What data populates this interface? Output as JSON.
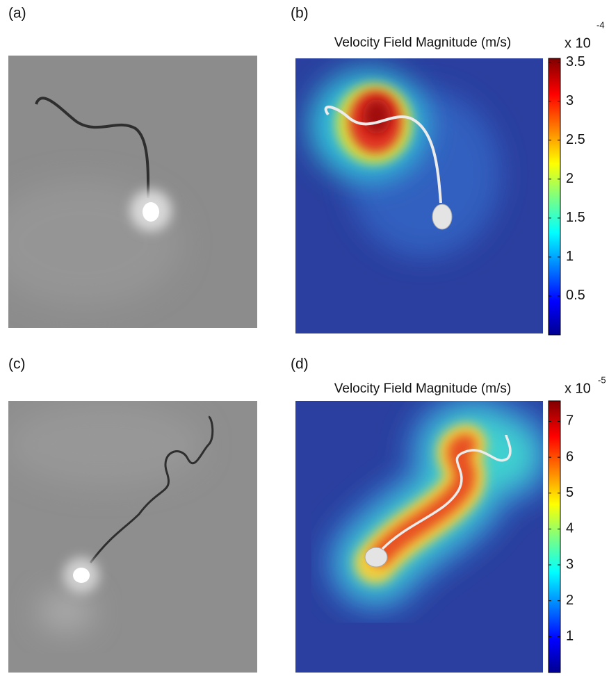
{
  "panels": [
    {
      "label": "(a)"
    },
    {
      "label": "(b)",
      "title": "Velocity Field Magnitude (m/s)",
      "colorbar": {
        "scale_label": "x 10",
        "scale_exponent": "-4",
        "lim": [
          0,
          3.55
        ],
        "ticks": [
          0.5,
          1,
          1.5,
          2,
          2.5,
          3,
          3.5
        ]
      }
    },
    {
      "label": "(c)"
    },
    {
      "label": "(d)",
      "title": "Velocity Field Magnitude (m/s)",
      "colorbar": {
        "scale_label": "x 10",
        "scale_exponent": "-5",
        "lim": [
          0,
          7.57
        ],
        "ticks": [
          1,
          2,
          3,
          4,
          5,
          6,
          7
        ]
      }
    }
  ]
}
